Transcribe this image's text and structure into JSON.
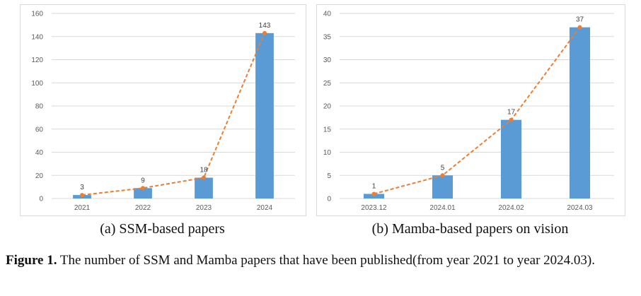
{
  "chart_data": [
    {
      "type": "bar",
      "categories": [
        "2021",
        "2022",
        "2023",
        "2024"
      ],
      "values": [
        3,
        9,
        18,
        143
      ],
      "data_labels": [
        "3",
        "9",
        "18",
        "143"
      ],
      "yticks": [
        "0",
        "20",
        "40",
        "60",
        "80",
        "100",
        "120",
        "140",
        "160"
      ],
      "ylim": [
        0,
        160
      ],
      "ystep": 20,
      "grid": true,
      "overlay": "dashed-line-with-markers",
      "caption": "(a) SSM-based papers"
    },
    {
      "type": "bar",
      "categories": [
        "2023.12",
        "2024.01",
        "2024.02",
        "2024.03"
      ],
      "values": [
        1,
        5,
        17,
        37
      ],
      "data_labels": [
        "1",
        "5",
        "17",
        "37"
      ],
      "yticks": [
        "0",
        "5",
        "10",
        "15",
        "20",
        "25",
        "30",
        "35",
        "40"
      ],
      "ylim": [
        0,
        40
      ],
      "ystep": 5,
      "grid": true,
      "overlay": "dashed-line-with-markers",
      "caption": "(b) Mamba-based papers on vision"
    }
  ],
  "colors": {
    "bar": "#5b9bd5",
    "line": "#ed7d31",
    "grid": "#d9d9d9",
    "tick_text": "#595959"
  },
  "figure_caption": {
    "label": "Figure 1.",
    "text": " The number of SSM and Mamba papers that have been published(from year 2021 to year 2024.03)."
  }
}
